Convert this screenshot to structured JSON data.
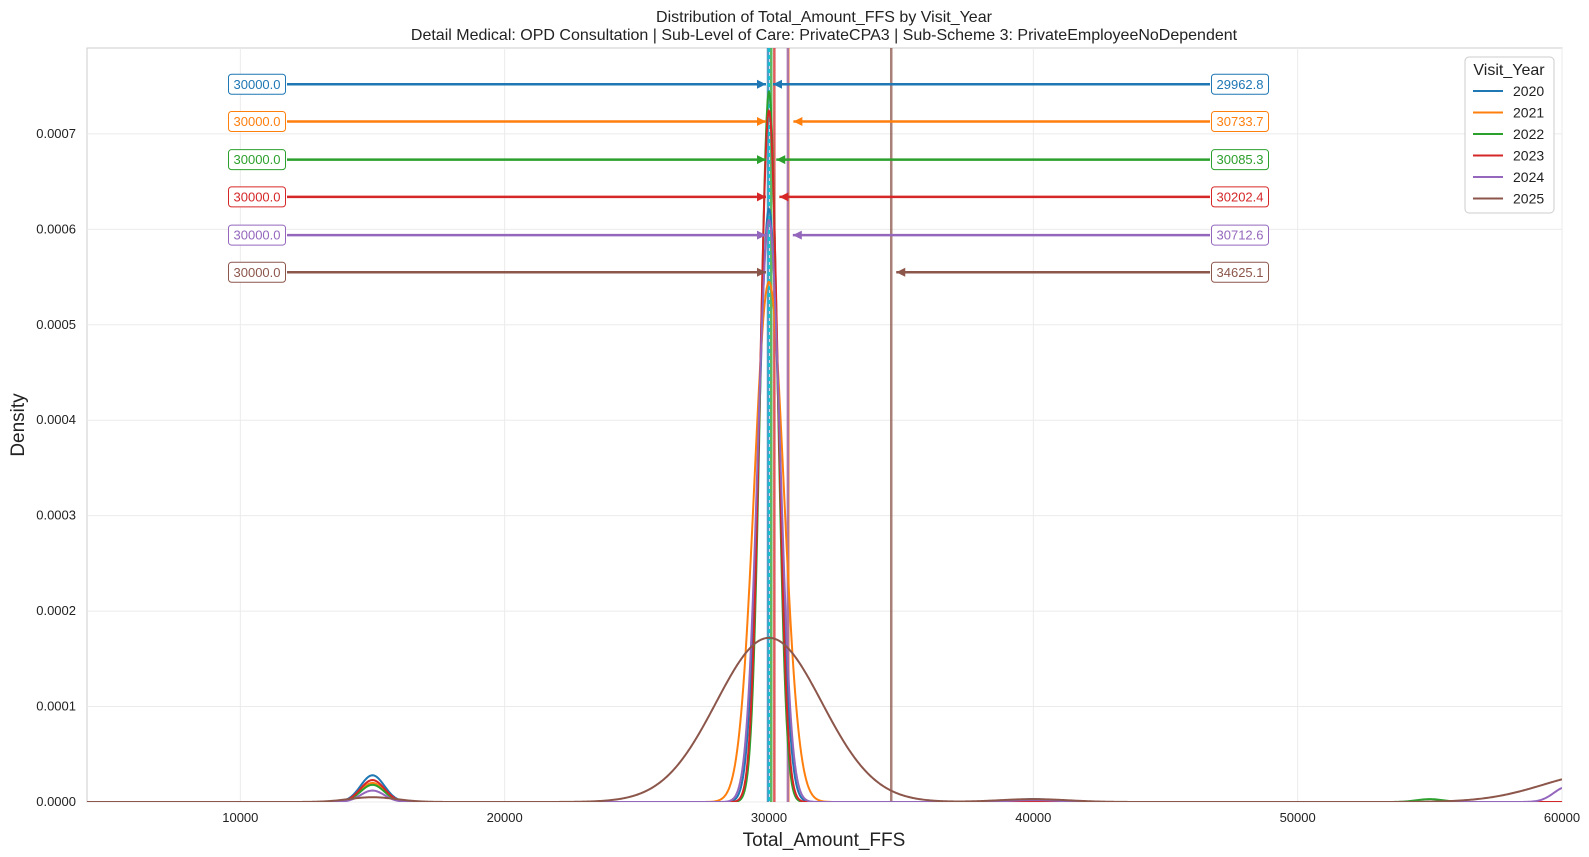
{
  "chart_data": {
    "type": "line",
    "title": "Distribution of Total_Amount_FFS by Visit_Year",
    "subtitle": "Detail Medical: OPD Consultation | Sub-Level of Care: PrivateCPA3 | Sub-Scheme 3: PrivateEmployeeNoDependent",
    "xlabel": "Total_Amount_FFS",
    "ylabel": "Density",
    "xlim": [
      4200,
      60000
    ],
    "ylim": [
      0,
      0.00079
    ],
    "xticks": [
      10000,
      20000,
      30000,
      40000,
      50000,
      60000
    ],
    "xtick_labels": [
      "10000",
      "20000",
      "30000",
      "40000",
      "50000",
      "60000"
    ],
    "yticks": [
      0,
      0.0001,
      0.0002,
      0.0003,
      0.0004,
      0.0005,
      0.0006,
      0.0007
    ],
    "ytick_labels": [
      "0.0000",
      "0.0001",
      "0.0002",
      "0.0003",
      "0.0004",
      "0.0005",
      "0.0006",
      "0.0007"
    ],
    "grid": true,
    "legend": {
      "title": "Visit_Year",
      "position": "top-right"
    },
    "series": [
      {
        "name": "2020",
        "color": "#1f77b4",
        "median": 30000.0,
        "median_label": "30000.0",
        "mean": 29962.8,
        "mean_label": "29962.8",
        "arrow_y": 0.000752,
        "components": [
          {
            "mu": 15000,
            "sigma": 450,
            "h": 2.8e-05
          },
          {
            "mu": 30000,
            "sigma": 390,
            "h": 0.000622
          },
          {
            "mu": 40000,
            "sigma": 800,
            "h": 3e-06
          }
        ]
      },
      {
        "name": "2021",
        "color": "#ff7f0e",
        "median": 30000.0,
        "median_label": "30000.0",
        "mean": 30733.7,
        "mean_label": "30733.7",
        "arrow_y": 0.000713,
        "components": [
          {
            "mu": 15000,
            "sigma": 450,
            "h": 2e-05
          },
          {
            "mu": 30000,
            "sigma": 560,
            "h": 0.000545
          }
        ]
      },
      {
        "name": "2022",
        "color": "#2ca02c",
        "median": 30000.0,
        "median_label": "30000.0",
        "mean": 30085.3,
        "mean_label": "30085.3",
        "arrow_y": 0.000673,
        "components": [
          {
            "mu": 15000,
            "sigma": 450,
            "h": 1.8e-05
          },
          {
            "mu": 30000,
            "sigma": 320,
            "h": 0.000745
          },
          {
            "mu": 55000,
            "sigma": 500,
            "h": 3e-06
          }
        ]
      },
      {
        "name": "2023",
        "color": "#d62728",
        "median": 30000.0,
        "median_label": "30000.0",
        "mean": 30202.4,
        "mean_label": "30202.4",
        "arrow_y": 0.000634,
        "components": [
          {
            "mu": 15000,
            "sigma": 450,
            "h": 2.3e-05
          },
          {
            "mu": 30000,
            "sigma": 340,
            "h": 0.000725
          }
        ]
      },
      {
        "name": "2024",
        "color": "#9467bd",
        "median": 30000.0,
        "median_label": "30000.0",
        "mean": 30712.6,
        "mean_label": "30712.6",
        "arrow_y": 0.000594,
        "components": [
          {
            "mu": 15000,
            "sigma": 450,
            "h": 1.2e-05
          },
          {
            "mu": 30000,
            "sigma": 420,
            "h": 0.00061
          },
          {
            "mu": 40000,
            "sigma": 900,
            "h": 2e-06
          },
          {
            "mu": 60200,
            "sigma": 500,
            "h": 1.6e-05
          }
        ]
      },
      {
        "name": "2025",
        "color": "#8c564b",
        "median": 30000.0,
        "median_label": "30000.0",
        "mean": 34625.1,
        "mean_label": "34625.1",
        "arrow_y": 0.000555,
        "components": [
          {
            "mu": 15000,
            "sigma": 900,
            "h": 5e-06
          },
          {
            "mu": 30000,
            "sigma": 2000,
            "h": 0.000172
          },
          {
            "mu": 40000,
            "sigma": 1300,
            "h": 3e-06
          },
          {
            "mu": 61500,
            "sigma": 2200,
            "h": 3e-05
          }
        ]
      }
    ],
    "median_line": {
      "x": 30000,
      "color": "#17becf"
    }
  }
}
